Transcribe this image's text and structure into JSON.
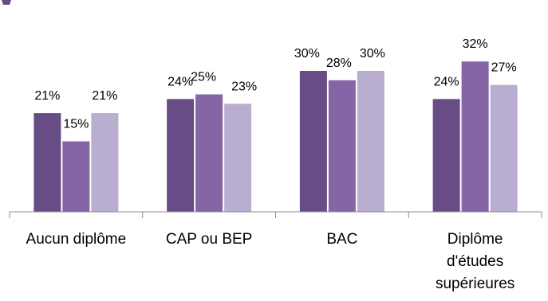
{
  "chart_data": {
    "type": "bar",
    "categories": [
      [
        "Aucun diplôme"
      ],
      [
        "CAP ou BEP"
      ],
      [
        "BAC"
      ],
      [
        "Diplôme",
        "d'études",
        "supérieures"
      ]
    ],
    "series": [
      {
        "values": [
          21,
          24,
          30,
          24
        ],
        "labels": [
          "21%",
          "24%",
          "30%",
          "24%"
        ],
        "color": "#674c86"
      },
      {
        "values": [
          15,
          25,
          28,
          32
        ],
        "labels": [
          "15%",
          "25%",
          "28%",
          "32%"
        ],
        "color": "#8565a6"
      },
      {
        "values": [
          21,
          23,
          30,
          27
        ],
        "labels": [
          "21%",
          "23%",
          "30%",
          "27%"
        ],
        "color": "#b9aed0"
      }
    ],
    "ylim": [
      0,
      40
    ],
    "grid": false,
    "legend": "none"
  }
}
